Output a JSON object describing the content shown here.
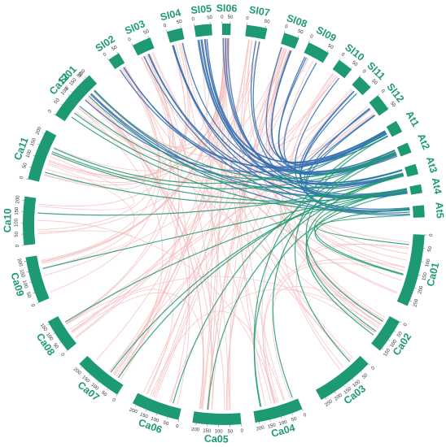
{
  "colors": {
    "segment": "#1d9a74",
    "link_pink": "#f4b8b8",
    "link_blue": "#2f6fb0",
    "link_green": "#1f9a70"
  },
  "chromosomes": [
    {
      "name": "Sl01",
      "ticks": [
        "0",
        "50"
      ]
    },
    {
      "name": "Sl02",
      "ticks": [
        "0",
        "50"
      ]
    },
    {
      "name": "Sl03",
      "ticks": [
        "0",
        "50"
      ]
    },
    {
      "name": "Sl04",
      "ticks": [
        "0",
        "50"
      ]
    },
    {
      "name": "Sl05",
      "ticks": [
        "0",
        "50"
      ]
    },
    {
      "name": "Sl06",
      "ticks": [
        "0",
        "50"
      ]
    },
    {
      "name": "Sl07",
      "ticks": [
        "0",
        "50"
      ]
    },
    {
      "name": "Sl08",
      "ticks": [
        "0",
        "50"
      ]
    },
    {
      "name": "Sl09",
      "ticks": [
        "0",
        "50"
      ]
    },
    {
      "name": "Sl10",
      "ticks": [
        "0",
        "50"
      ]
    },
    {
      "name": "Sl11",
      "ticks": [
        "0",
        "50"
      ]
    },
    {
      "name": "Sl12",
      "ticks": [
        "0",
        "50"
      ]
    },
    {
      "name": "At1",
      "ticks": []
    },
    {
      "name": "At2",
      "ticks": []
    },
    {
      "name": "At3",
      "ticks": []
    },
    {
      "name": "At4",
      "ticks": []
    },
    {
      "name": "At5",
      "ticks": []
    },
    {
      "name": "Ca01",
      "ticks": [
        "0",
        "50",
        "100",
        "150",
        "200",
        "250"
      ]
    },
    {
      "name": "Ca02",
      "ticks": [
        "0",
        "50",
        "100",
        "150"
      ]
    },
    {
      "name": "Ca03",
      "ticks": [
        "0",
        "50",
        "100",
        "150",
        "200",
        "250"
      ]
    },
    {
      "name": "Ca04",
      "ticks": [
        "0",
        "50",
        "100",
        "150",
        "200"
      ]
    },
    {
      "name": "Ca05",
      "ticks": [
        "0",
        "50",
        "100",
        "150",
        "200"
      ]
    },
    {
      "name": "Ca06",
      "ticks": [
        "0",
        "50",
        "100",
        "150",
        "200"
      ]
    },
    {
      "name": "Ca07",
      "ticks": [
        "0",
        "50",
        "100",
        "150",
        "200"
      ]
    },
    {
      "name": "Ca08",
      "ticks": [
        "0",
        "50",
        "100",
        "150"
      ]
    },
    {
      "name": "Ca09",
      "ticks": [
        "0",
        "50",
        "100",
        "150",
        "200"
      ]
    },
    {
      "name": "Ca10",
      "ticks": [
        "0",
        "50",
        "100",
        "150",
        "200"
      ]
    },
    {
      "name": "Ca11",
      "ticks": [
        "0",
        "50",
        "100",
        "150",
        "200"
      ]
    },
    {
      "name": "Ca12",
      "ticks": [
        "0",
        "50",
        "100",
        "150",
        "200"
      ]
    }
  ]
}
